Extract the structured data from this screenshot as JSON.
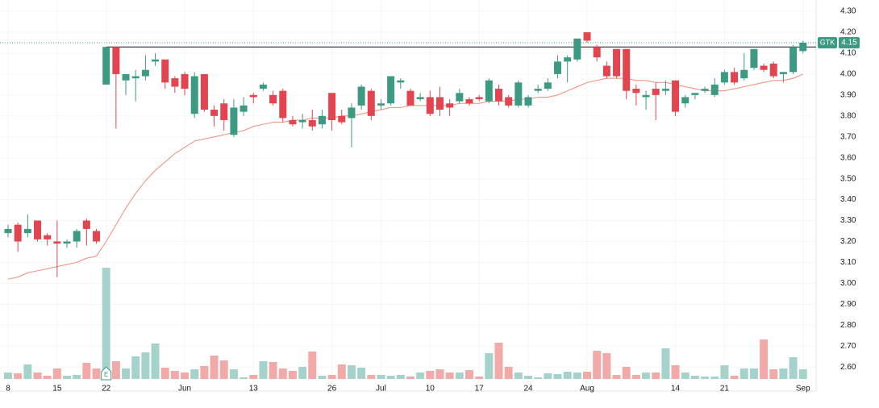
{
  "chart_data": {
    "type": "candlestick",
    "symbol": "GTK",
    "categories": [
      "8",
      null,
      null,
      null,
      null,
      "15",
      null,
      null,
      null,
      null,
      "22",
      null,
      null,
      null,
      null,
      null,
      null,
      null,
      "Jun",
      null,
      null,
      null,
      null,
      null,
      null,
      "13",
      null,
      null,
      null,
      null,
      null,
      null,
      null,
      "26",
      null,
      null,
      null,
      null,
      "Jul",
      null,
      null,
      null,
      null,
      "10",
      null,
      null,
      null,
      null,
      "17",
      null,
      null,
      null,
      null,
      "24",
      null,
      null,
      null,
      null,
      null,
      "Aug",
      null,
      null,
      null,
      null,
      null,
      null,
      null,
      null,
      "14",
      null,
      null,
      null,
      null,
      "21",
      null,
      null,
      null,
      null,
      null,
      null,
      null,
      "Sep"
    ],
    "open": [
      3.24,
      3.28,
      3.24,
      3.3,
      3.23,
      3.2,
      3.19,
      3.2,
      3.3,
      3.25,
      3.95,
      4.13,
      3.97,
      3.98,
      3.99,
      4.06,
      4.07,
      3.98,
      4.0,
      3.81,
      4.0,
      3.83,
      3.86,
      3.71,
      3.82,
      3.9,
      3.93,
      3.9,
      3.92,
      3.78,
      3.77,
      3.78,
      3.76,
      3.91,
      3.8,
      3.79,
      3.85,
      3.92,
      3.85,
      3.86,
      3.96,
      3.92,
      3.88,
      3.89,
      3.89,
      3.86,
      3.87,
      3.88,
      3.89,
      3.87,
      3.93,
      3.89,
      3.85,
      3.85,
      3.92,
      3.93,
      4.0,
      4.06,
      4.07,
      4.2,
      4.13,
      4.04,
      4.12,
      4.12,
      3.93,
      3.89,
      3.93,
      3.92,
      3.97,
      3.86,
      3.9,
      3.92,
      3.9,
      3.96,
      4.01,
      3.98,
      4.03,
      4.04,
      4.05,
      4.0,
      4.01,
      4.11
    ],
    "high": [
      3.28,
      3.29,
      3.33,
      3.3,
      3.24,
      3.3,
      3.21,
      3.26,
      3.31,
      3.26,
      4.13,
      4.13,
      4.0,
      4.02,
      4.09,
      4.1,
      4.07,
      3.99,
      4.01,
      4.01,
      4.0,
      3.85,
      3.88,
      3.88,
      3.89,
      3.91,
      3.96,
      3.92,
      3.93,
      3.8,
      3.81,
      3.83,
      3.83,
      3.91,
      3.83,
      3.86,
      3.95,
      3.93,
      3.88,
      3.99,
      3.98,
      3.93,
      3.91,
      3.92,
      3.94,
      3.88,
      3.93,
      3.89,
      3.9,
      3.98,
      3.95,
      3.9,
      3.97,
      3.9,
      3.95,
      3.98,
      4.09,
      4.09,
      4.17,
      4.2,
      4.14,
      4.06,
      4.12,
      4.12,
      3.95,
      3.92,
      3.96,
      3.97,
      3.97,
      3.9,
      3.91,
      3.94,
      3.98,
      4.02,
      4.03,
      4.1,
      4.12,
      4.05,
      4.06,
      4.01,
      4.14,
      4.16
    ],
    "low": [
      3.22,
      3.15,
      3.22,
      3.2,
      3.18,
      3.03,
      3.17,
      3.17,
      3.18,
      3.19,
      3.95,
      3.74,
      3.9,
      3.87,
      3.97,
      4.04,
      3.93,
      3.91,
      3.9,
      3.79,
      3.82,
      3.75,
      3.73,
      3.7,
      3.8,
      3.86,
      3.92,
      3.85,
      3.77,
      3.75,
      3.74,
      3.73,
      3.74,
      3.73,
      3.76,
      3.65,
      3.83,
      3.78,
      3.83,
      3.85,
      3.93,
      3.85,
      3.87,
      3.8,
      3.8,
      3.8,
      3.86,
      3.85,
      3.87,
      3.86,
      3.85,
      3.84,
      3.84,
      3.84,
      3.91,
      3.92,
      3.98,
      3.96,
      4.06,
      4.15,
      4.06,
      3.98,
      3.98,
      3.88,
      3.85,
      3.83,
      3.78,
      3.9,
      3.8,
      3.84,
      3.88,
      3.91,
      3.89,
      3.95,
      3.95,
      3.97,
      4.02,
      4.01,
      3.98,
      3.96,
      4.0,
      4.1
    ],
    "close": [
      3.26,
      3.2,
      3.26,
      3.21,
      3.21,
      3.19,
      3.2,
      3.25,
      3.26,
      3.2,
      4.13,
      4.0,
      4.0,
      3.99,
      4.02,
      4.07,
      3.96,
      3.94,
      3.93,
      3.99,
      3.83,
      3.8,
      3.78,
      3.84,
      3.85,
      3.89,
      3.95,
      3.86,
      3.79,
      3.76,
      3.78,
      3.75,
      3.8,
      3.78,
      3.77,
      3.84,
      3.94,
      3.8,
      3.86,
      3.99,
      3.97,
      3.85,
      3.89,
      3.81,
      3.83,
      3.84,
      3.91,
      3.86,
      3.88,
      3.97,
      3.87,
      3.85,
      3.96,
      3.89,
      3.93,
      3.96,
      4.06,
      4.08,
      4.17,
      4.16,
      4.08,
      3.99,
      3.99,
      3.92,
      3.91,
      3.9,
      3.9,
      3.93,
      3.82,
      3.89,
      3.91,
      3.93,
      3.95,
      4.01,
      3.96,
      4.02,
      4.12,
      4.02,
      3.99,
      4.01,
      4.13,
      4.15
    ],
    "volume": [
      8,
      7,
      18,
      8,
      4,
      13,
      4,
      5,
      20,
      13,
      138,
      22,
      13,
      28,
      33,
      44,
      14,
      10,
      8,
      12,
      16,
      29,
      23,
      12,
      2,
      5,
      22,
      21,
      13,
      10,
      15,
      34,
      4,
      5,
      18,
      17,
      14,
      5,
      5,
      4,
      5,
      3,
      8,
      10,
      12,
      8,
      8,
      11,
      3,
      32,
      45,
      15,
      8,
      4,
      2,
      7,
      6,
      9,
      8,
      9,
      35,
      32,
      5,
      15,
      5,
      8,
      8,
      38,
      17,
      8,
      4,
      3,
      3,
      17,
      4,
      13,
      13,
      49,
      12,
      13,
      27,
      12
    ],
    "volume_ylim": [
      0,
      140
    ],
    "ma": {
      "color": "#f08c78",
      "values": [
        3.02,
        3.03,
        3.05,
        3.06,
        3.07,
        3.08,
        3.09,
        3.1,
        3.12,
        3.13,
        3.2,
        3.28,
        3.36,
        3.43,
        3.49,
        3.54,
        3.58,
        3.62,
        3.65,
        3.68,
        3.69,
        3.7,
        3.71,
        3.72,
        3.73,
        3.75,
        3.76,
        3.77,
        3.77,
        3.78,
        3.78,
        3.79,
        3.79,
        3.79,
        3.8,
        3.8,
        3.81,
        3.82,
        3.83,
        3.84,
        3.84,
        3.85,
        3.85,
        3.85,
        3.85,
        3.85,
        3.86,
        3.86,
        3.86,
        3.87,
        3.87,
        3.87,
        3.88,
        3.88,
        3.89,
        3.89,
        3.9,
        3.92,
        3.94,
        3.96,
        3.97,
        3.98,
        3.98,
        3.98,
        3.97,
        3.97,
        3.96,
        3.96,
        3.95,
        3.94,
        3.93,
        3.92,
        3.92,
        3.92,
        3.93,
        3.94,
        3.95,
        3.96,
        3.97,
        3.97,
        3.98,
        4.0
      ]
    },
    "colors": {
      "up": "#3d9a82",
      "down": "#e2454f",
      "volume_up": "#a5d3cc",
      "volume_down": "#f2aaa9"
    },
    "ylim": [
      2.485,
      4.335
    ],
    "yticks": [
      {
        "value": 2.6,
        "label": "2.60"
      },
      {
        "value": 2.7,
        "label": "2.70"
      },
      {
        "value": 2.8,
        "label": "2.80"
      },
      {
        "value": 2.9,
        "label": "2.90"
      },
      {
        "value": 3.0,
        "label": "3.00"
      },
      {
        "value": 3.1,
        "label": "3.10"
      },
      {
        "value": 3.2,
        "label": "3.20"
      },
      {
        "value": 3.3,
        "label": "3.30"
      },
      {
        "value": 3.4,
        "label": "3.40"
      },
      {
        "value": 3.5,
        "label": "3.50"
      },
      {
        "value": 3.6,
        "label": "3.60"
      },
      {
        "value": 3.7,
        "label": "3.70"
      },
      {
        "value": 3.8,
        "label": "3.80"
      },
      {
        "value": 3.9,
        "label": "3.90"
      },
      {
        "value": 4.0,
        "label": "4.00"
      },
      {
        "value": 4.1,
        "label": "4.10"
      },
      {
        "value": 4.2,
        "label": "4.20"
      },
      {
        "value": 4.3,
        "label": "4.30"
      }
    ],
    "grid": true,
    "last_price": {
      "value": 4.15,
      "label": "4.15"
    },
    "level": {
      "value": 4.13,
      "start": 10
    },
    "earnings": {
      "index": 10,
      "label": "E"
    }
  }
}
